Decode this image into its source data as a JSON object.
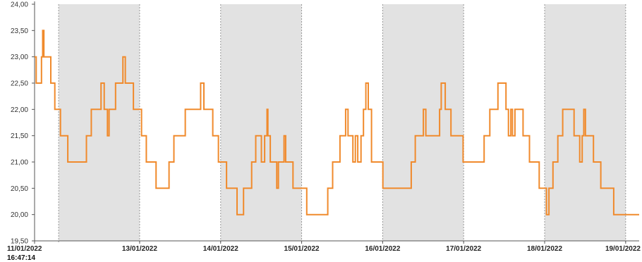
{
  "chart_data": {
    "type": "line",
    "line_style": "step",
    "title": "",
    "xlabel": "",
    "ylabel": "",
    "ylim": [
      19.5,
      24.0
    ],
    "y_ticks": [
      "19,50",
      "20,00",
      "20,50",
      "21,00",
      "21,50",
      "22,00",
      "22,50",
      "23,00",
      "23,50",
      "24,00"
    ],
    "x_range": [
      0,
      7.464
    ],
    "x_ticks": [
      {
        "x": 0,
        "label": "11/01/2022"
      },
      {
        "x": 1.297,
        "label": "13/01/2022"
      },
      {
        "x": 2.297,
        "label": "14/01/2022"
      },
      {
        "x": 3.297,
        "label": "15/01/2022"
      },
      {
        "x": 4.297,
        "label": "16/01/2022"
      },
      {
        "x": 5.297,
        "label": "17/01/2022"
      },
      {
        "x": 6.297,
        "label": "18/01/2022"
      },
      {
        "x": 7.297,
        "label": "19/01/2022"
      }
    ],
    "start_time_label": "16:47:14",
    "grid": false,
    "shaded_bands": [
      [
        0.297,
        1.297
      ],
      [
        2.297,
        3.297
      ],
      [
        4.297,
        5.297
      ],
      [
        6.297,
        7.297
      ]
    ],
    "colors": {
      "line": "#f08a2c",
      "band": "#e2e2e2",
      "band_border": "#999999",
      "axis": "#555555"
    },
    "series": [
      {
        "values": [
          [
            0.0,
            23.0
          ],
          [
            0.02,
            22.5
          ],
          [
            0.085,
            23.0
          ],
          [
            0.1,
            23.5
          ],
          [
            0.115,
            23.0
          ],
          [
            0.2,
            22.5
          ],
          [
            0.25,
            22.0
          ],
          [
            0.32,
            21.5
          ],
          [
            0.41,
            21.0
          ],
          [
            0.64,
            21.5
          ],
          [
            0.7,
            22.0
          ],
          [
            0.82,
            22.5
          ],
          [
            0.86,
            22.0
          ],
          [
            0.9,
            21.5
          ],
          [
            0.92,
            22.0
          ],
          [
            1.0,
            22.5
          ],
          [
            1.09,
            23.0
          ],
          [
            1.12,
            22.5
          ],
          [
            1.22,
            22.0
          ],
          [
            1.32,
            21.5
          ],
          [
            1.38,
            21.0
          ],
          [
            1.5,
            20.5
          ],
          [
            1.66,
            21.0
          ],
          [
            1.72,
            21.5
          ],
          [
            1.86,
            22.0
          ],
          [
            2.05,
            22.5
          ],
          [
            2.09,
            22.0
          ],
          [
            2.2,
            21.5
          ],
          [
            2.27,
            21.0
          ],
          [
            2.37,
            20.5
          ],
          [
            2.5,
            20.0
          ],
          [
            2.58,
            20.5
          ],
          [
            2.68,
            21.0
          ],
          [
            2.73,
            21.5
          ],
          [
            2.8,
            21.0
          ],
          [
            2.84,
            21.5
          ],
          [
            2.87,
            22.0
          ],
          [
            2.88,
            21.5
          ],
          [
            2.91,
            21.0
          ],
          [
            2.99,
            20.5
          ],
          [
            3.01,
            21.0
          ],
          [
            3.08,
            21.5
          ],
          [
            3.1,
            21.0
          ],
          [
            3.19,
            20.5
          ],
          [
            3.3,
            20.5
          ],
          [
            3.36,
            20.0
          ],
          [
            3.62,
            20.5
          ],
          [
            3.68,
            21.0
          ],
          [
            3.77,
            21.5
          ],
          [
            3.84,
            22.0
          ],
          [
            3.87,
            21.5
          ],
          [
            3.93,
            21.0
          ],
          [
            3.96,
            21.5
          ],
          [
            3.99,
            21.0
          ],
          [
            4.03,
            21.5
          ],
          [
            4.06,
            22.0
          ],
          [
            4.09,
            22.5
          ],
          [
            4.12,
            22.0
          ],
          [
            4.16,
            21.0
          ],
          [
            4.3,
            20.5
          ],
          [
            4.65,
            21.0
          ],
          [
            4.7,
            21.5
          ],
          [
            4.8,
            22.0
          ],
          [
            4.83,
            21.5
          ],
          [
            4.92,
            21.5
          ],
          [
            5.0,
            22.0
          ],
          [
            5.02,
            22.5
          ],
          [
            5.07,
            22.0
          ],
          [
            5.14,
            21.5
          ],
          [
            5.29,
            21.0
          ],
          [
            5.55,
            21.5
          ],
          [
            5.62,
            22.0
          ],
          [
            5.72,
            22.5
          ],
          [
            5.82,
            22.0
          ],
          [
            5.85,
            21.5
          ],
          [
            5.88,
            22.0
          ],
          [
            5.9,
            21.5
          ],
          [
            5.93,
            22.0
          ],
          [
            6.03,
            21.5
          ],
          [
            6.11,
            21.0
          ],
          [
            6.23,
            20.5
          ],
          [
            6.32,
            20.0
          ],
          [
            6.35,
            20.5
          ],
          [
            6.4,
            21.0
          ],
          [
            6.46,
            21.5
          ],
          [
            6.52,
            22.0
          ],
          [
            6.66,
            21.5
          ],
          [
            6.73,
            21.0
          ],
          [
            6.76,
            21.5
          ],
          [
            6.78,
            22.0
          ],
          [
            6.8,
            21.5
          ],
          [
            6.9,
            21.0
          ],
          [
            6.99,
            20.5
          ],
          [
            7.12,
            20.5
          ],
          [
            7.15,
            20.0
          ],
          [
            7.464,
            20.0
          ]
        ]
      }
    ]
  }
}
